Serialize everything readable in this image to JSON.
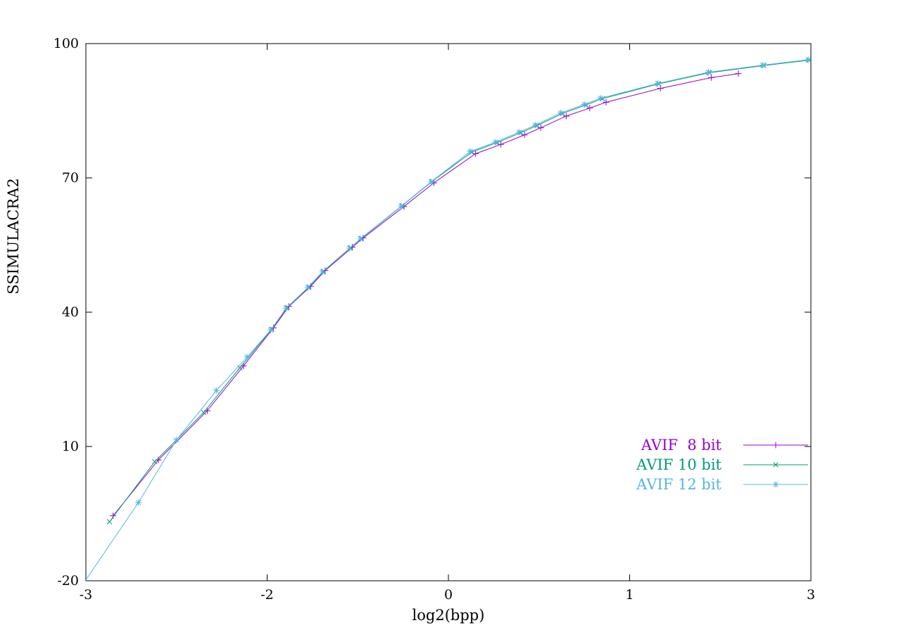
{
  "page": {
    "background": "#ffffff",
    "text_color": "#000000"
  },
  "chart_data": {
    "type": "line",
    "title": "",
    "xlabel": "log2(bpp)",
    "ylabel": "SSIMULACRA2",
    "ylim": [
      -20,
      100
    ],
    "grid": false,
    "legend_position": "inside-bottom-right",
    "xticks": {
      "values": [
        -3,
        -2,
        0,
        1,
        3
      ],
      "labels": [
        "-3",
        "-2",
        "0",
        "1",
        "3"
      ]
    },
    "yticks": {
      "values": [
        -20,
        10,
        40,
        70,
        100
      ],
      "labels": [
        "-20",
        "10",
        "40",
        "70",
        "100"
      ]
    },
    "series": [
      {
        "name": "AVIF  8 bit",
        "color": "#9400d3",
        "marker": "plus",
        "points": [
          [
            -2.85,
            -5.5
          ],
          [
            -2.6,
            7.0
          ],
          [
            -2.33,
            18.0
          ],
          [
            -2.13,
            28.0
          ],
          [
            -1.93,
            36.5
          ],
          [
            -1.76,
            41.3
          ],
          [
            -1.52,
            45.8
          ],
          [
            -1.36,
            49.3
          ],
          [
            -1.06,
            54.5
          ],
          [
            -0.94,
            56.6
          ],
          [
            -0.49,
            63.6
          ],
          [
            -0.16,
            68.9
          ],
          [
            0.15,
            75.4
          ],
          [
            0.29,
            77.5
          ],
          [
            0.42,
            79.6
          ],
          [
            0.51,
            81.2
          ],
          [
            0.65,
            83.8
          ],
          [
            0.78,
            85.6
          ],
          [
            0.87,
            86.9
          ],
          [
            1.34,
            90.0
          ],
          [
            1.9,
            92.4
          ],
          [
            2.2,
            93.3
          ]
        ]
      },
      {
        "name": "AVIF 10 bit",
        "color": "#009e73",
        "marker": "cross",
        "points": [
          [
            -2.87,
            -6.8
          ],
          [
            -2.62,
            6.6
          ],
          [
            -2.35,
            17.6
          ],
          [
            -2.15,
            27.6
          ],
          [
            -1.95,
            36.2
          ],
          [
            -1.78,
            41.0
          ],
          [
            -1.54,
            45.6
          ],
          [
            -1.38,
            49.1
          ],
          [
            -1.08,
            54.4
          ],
          [
            -0.96,
            56.5
          ],
          [
            -0.51,
            63.8
          ],
          [
            -0.18,
            69.2
          ],
          [
            0.13,
            75.8
          ],
          [
            0.27,
            77.9
          ],
          [
            0.4,
            80.1
          ],
          [
            0.49,
            81.7
          ],
          [
            0.63,
            84.4
          ],
          [
            0.76,
            86.3
          ],
          [
            0.85,
            87.7
          ],
          [
            1.32,
            91.0
          ],
          [
            1.88,
            93.5
          ],
          [
            2.48,
            95.1
          ],
          [
            2.98,
            96.3
          ]
        ]
      },
      {
        "name": "AVIF 12 bit",
        "color": "#56b4e9",
        "marker": "asterisk",
        "points": [
          [
            -3.02,
            -21.0
          ],
          [
            -2.71,
            -2.5
          ],
          [
            -2.5,
            11.5
          ],
          [
            -2.28,
            22.5
          ],
          [
            -2.11,
            30.0
          ],
          [
            -1.96,
            36.0
          ],
          [
            -1.79,
            40.9
          ],
          [
            -1.55,
            45.5
          ],
          [
            -1.39,
            49.0
          ],
          [
            -1.09,
            54.3
          ],
          [
            -0.97,
            56.4
          ],
          [
            -0.52,
            63.7
          ],
          [
            -0.19,
            69.1
          ],
          [
            0.12,
            75.9
          ],
          [
            0.26,
            78.0
          ],
          [
            0.39,
            80.2
          ],
          [
            0.48,
            81.8
          ],
          [
            0.62,
            84.5
          ],
          [
            0.75,
            86.4
          ],
          [
            0.84,
            87.8
          ],
          [
            1.31,
            91.1
          ],
          [
            1.87,
            93.6
          ],
          [
            2.47,
            95.2
          ],
          [
            2.97,
            96.4
          ]
        ]
      }
    ]
  }
}
